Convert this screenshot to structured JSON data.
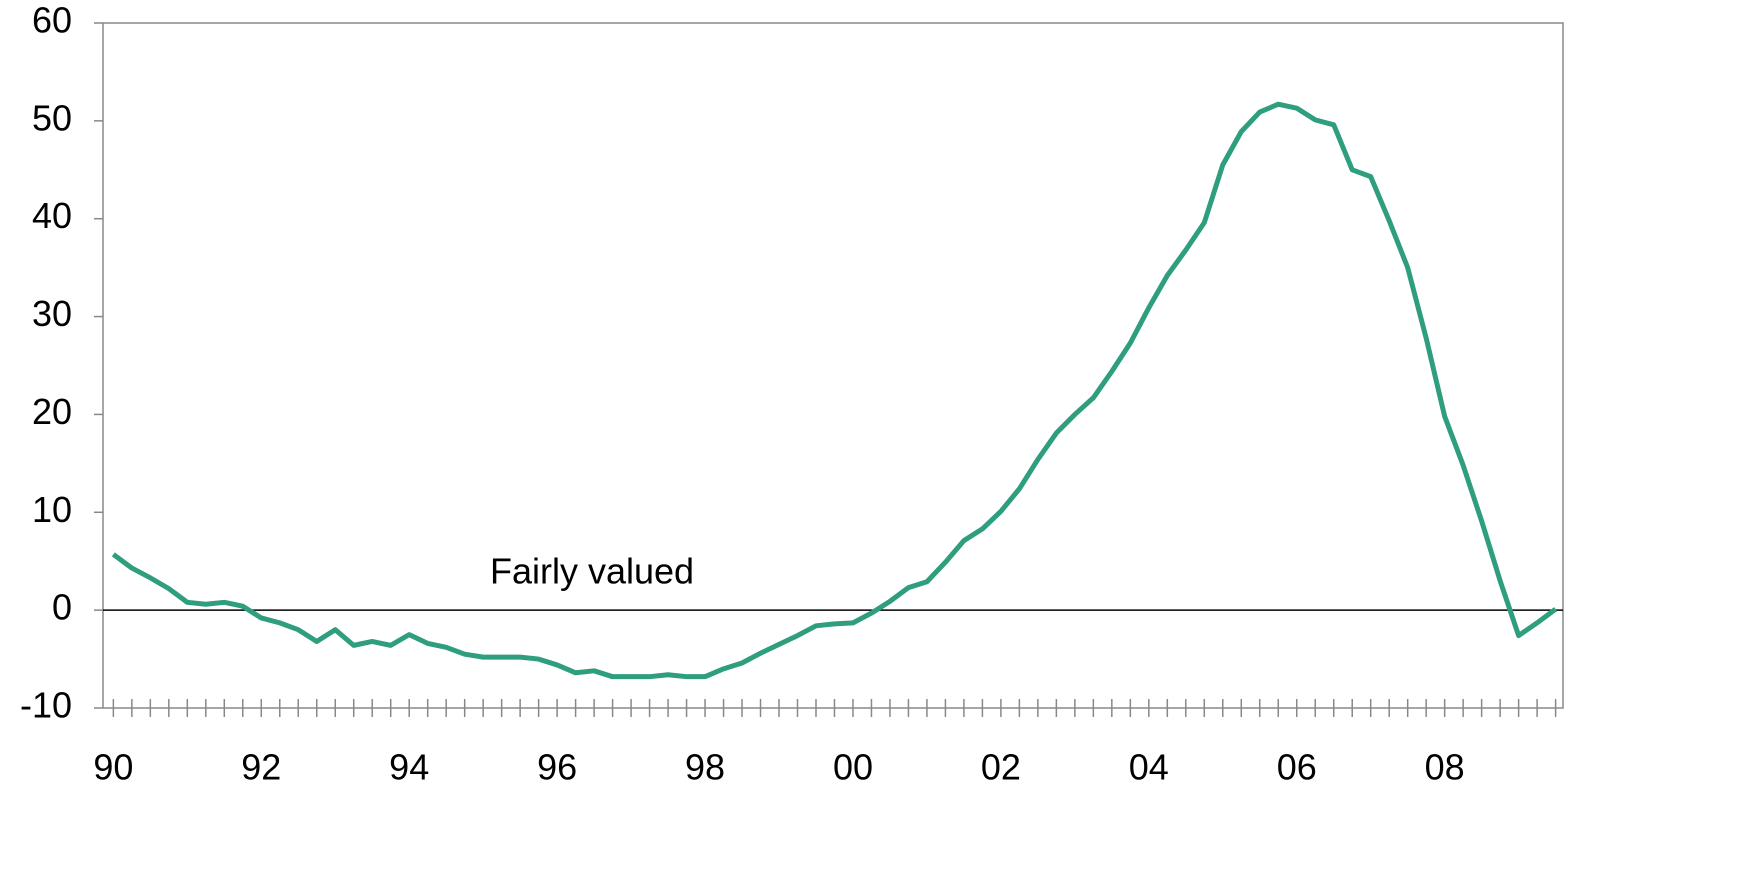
{
  "chart_data": {
    "type": "line",
    "x": [
      1990,
      1990.25,
      1990.5,
      1990.75,
      1991,
      1991.25,
      1991.5,
      1991.75,
      1992,
      1992.25,
      1992.5,
      1992.75,
      1993,
      1993.25,
      1993.5,
      1993.75,
      1994,
      1994.25,
      1994.5,
      1994.75,
      1995,
      1995.25,
      1995.5,
      1995.75,
      1996,
      1996.25,
      1996.5,
      1996.75,
      1997,
      1997.25,
      1997.5,
      1997.75,
      1998,
      1998.25,
      1998.5,
      1998.75,
      1999,
      1999.25,
      1999.5,
      1999.75,
      2000,
      2000.25,
      2000.5,
      2000.75,
      2001,
      2001.25,
      2001.5,
      2001.75,
      2002,
      2002.25,
      2002.5,
      2002.75,
      2003,
      2003.25,
      2003.5,
      2003.75,
      2004,
      2004.25,
      2004.5,
      2004.75,
      2005,
      2005.25,
      2005.5,
      2005.75,
      2006,
      2006.25,
      2006.5,
      2006.75,
      2007,
      2007.25,
      2007.5,
      2007.75,
      2008,
      2008.25,
      2008.5,
      2008.75,
      2009,
      2009.25,
      2009.5
    ],
    "series": [
      {
        "color": "#2e9e7f",
        "values": [
          5.7,
          4.3,
          3.3,
          2.2,
          0.8,
          0.6,
          0.8,
          0.4,
          -0.8,
          -1.3,
          -2.0,
          -3.2,
          -2.0,
          -3.6,
          -3.2,
          -3.6,
          -2.5,
          -3.4,
          -3.8,
          -4.5,
          -4.8,
          -4.8,
          -4.8,
          -5.0,
          -5.6,
          -6.4,
          -6.2,
          -6.8,
          -6.8,
          -6.8,
          -6.6,
          -6.8,
          -6.8,
          -6.0,
          -5.4,
          -4.4,
          -3.5,
          -2.6,
          -1.6,
          -1.4,
          -1.3,
          -0.3,
          0.9,
          2.3,
          2.9,
          4.9,
          7.1,
          8.3,
          10.1,
          12.4,
          15.4,
          18.1,
          20.0,
          21.7,
          24.4,
          27.3,
          30.9,
          34.2,
          36.8,
          39.6,
          45.5,
          48.9,
          50.9,
          51.7,
          51.3,
          50.1,
          49.6,
          45.0,
          44.3,
          39.8,
          35.0,
          27.8,
          19.8,
          14.8,
          9.1,
          3.0,
          -2.6,
          -1.3,
          0.1
        ]
      }
    ],
    "reference_line": {
      "value": 0,
      "label": "Fairly valued"
    },
    "xlim": [
      1989.86,
      2009.6
    ],
    "xticks": [
      {
        "value": 1990,
        "label": "90"
      },
      {
        "value": 1992,
        "label": "92"
      },
      {
        "value": 1994,
        "label": "94"
      },
      {
        "value": 1996,
        "label": "96"
      },
      {
        "value": 1998,
        "label": "98"
      },
      {
        "value": 2000,
        "label": "00"
      },
      {
        "value": 2002,
        "label": "02"
      },
      {
        "value": 2004,
        "label": "04"
      },
      {
        "value": 2006,
        "label": "06"
      },
      {
        "value": 2008,
        "label": "08"
      }
    ],
    "ylim": [
      -10,
      60
    ],
    "yticks": [
      -10,
      0,
      10,
      20,
      30,
      40,
      50,
      60
    ]
  }
}
